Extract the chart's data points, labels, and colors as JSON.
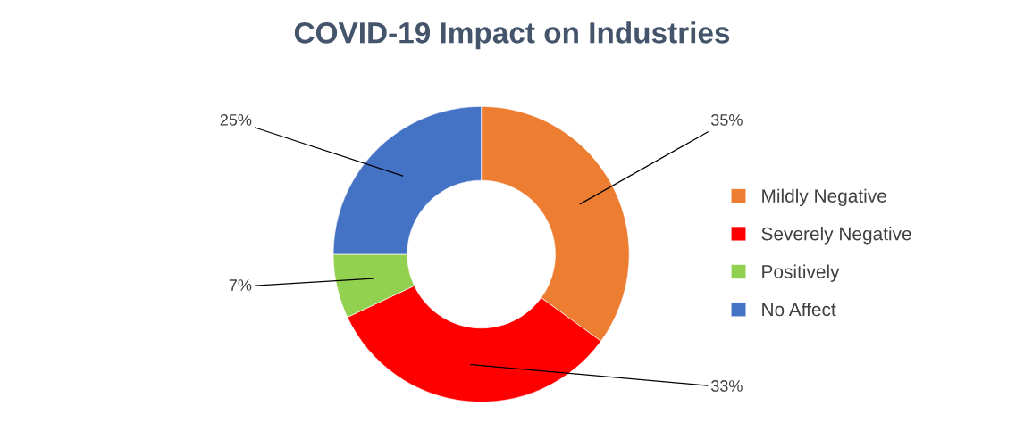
{
  "chart_data": {
    "type": "donut",
    "title": "COVID-19 Impact on Industries",
    "categories": [
      "Mildly Negative",
      "Severely Negative",
      "Positively",
      "No Affect"
    ],
    "values": [
      35,
      33,
      7,
      25
    ],
    "colors": [
      "#ed7d31",
      "#ff0000",
      "#92d050",
      "#4472c4"
    ],
    "value_labels": [
      "35%",
      "33%",
      "7%",
      "25%"
    ],
    "legend": "right"
  }
}
